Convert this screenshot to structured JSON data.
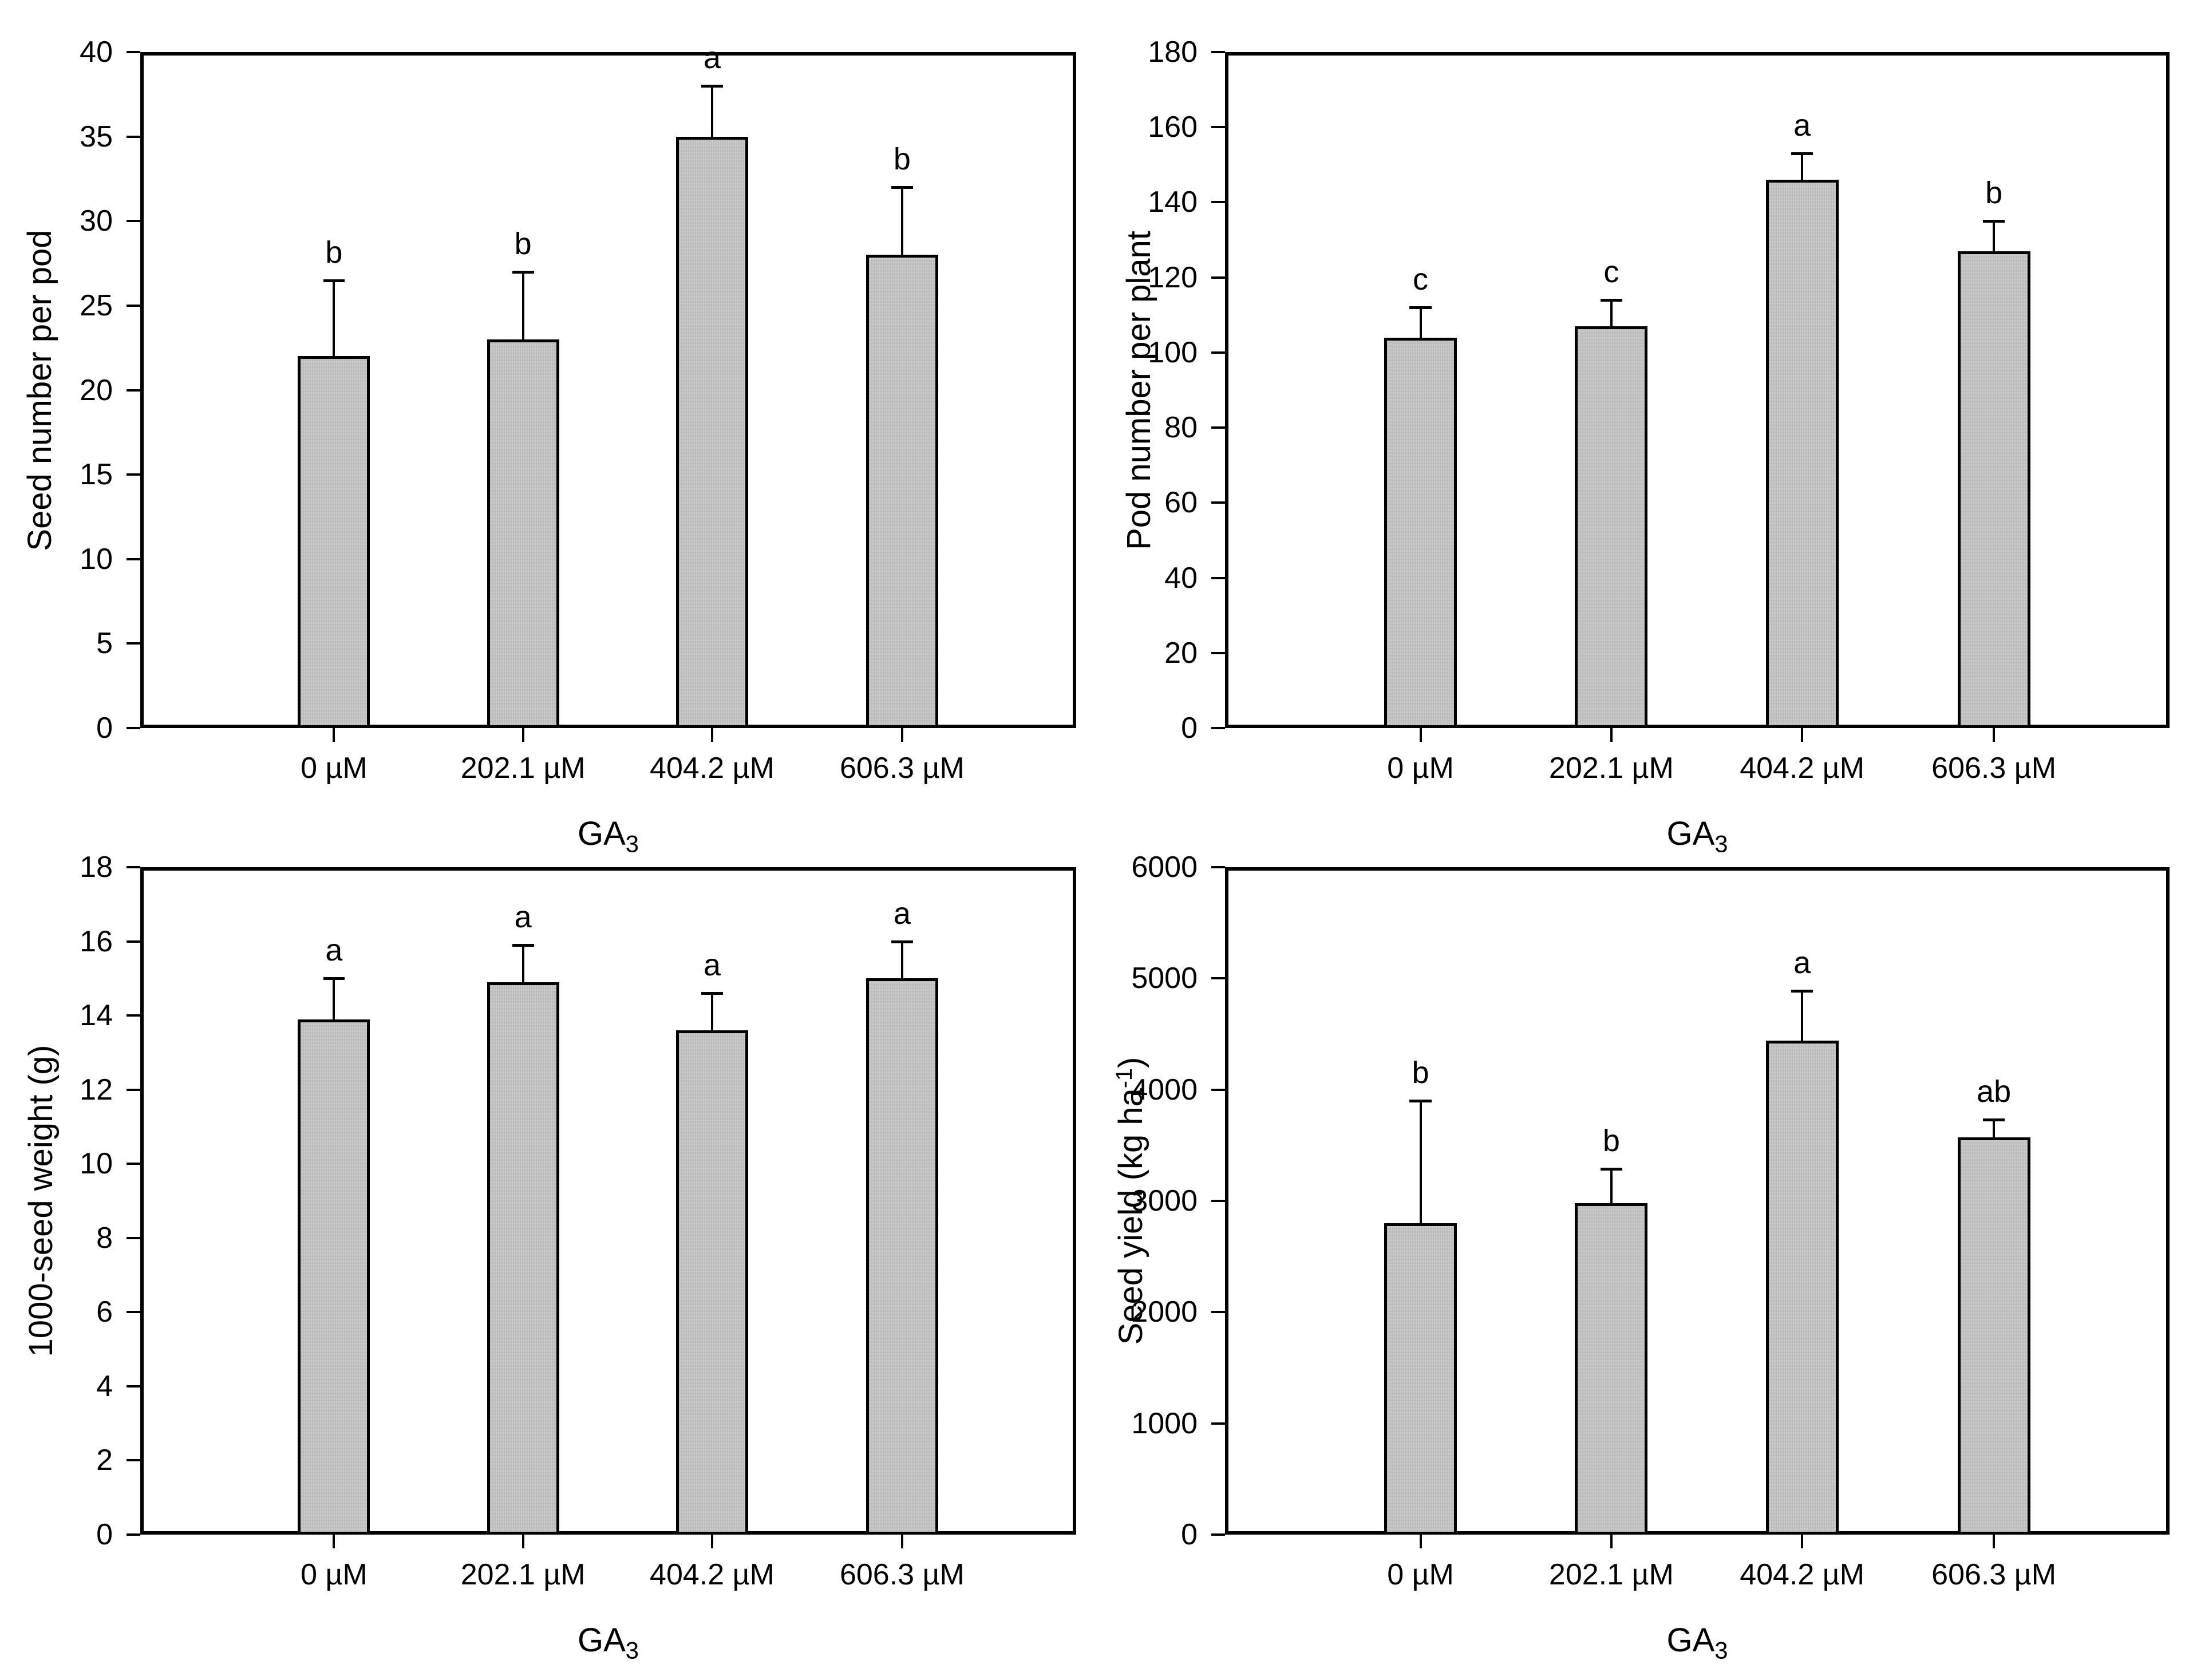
{
  "figure": {
    "background": "#ffffff",
    "line_color": "#000000",
    "bar_fill": "#c9c9c9"
  },
  "chart_data": [
    {
      "id": "seed-number-per-pod",
      "type": "bar",
      "position": "top-left",
      "title": "",
      "ylabel": "Seed number per pod",
      "xlabel_base": "GA",
      "xlabel_sub": "3",
      "categories": [
        "0 µM",
        "202.1 µM",
        "404.2 µM",
        "606.3 µM"
      ],
      "values": [
        22,
        23,
        35,
        28
      ],
      "error_top": [
        26.5,
        27,
        38,
        32
      ],
      "letters": [
        "b",
        "b",
        "a",
        "b"
      ],
      "ylim": [
        0,
        40
      ],
      "ytick_step": 5,
      "yticks": [
        "0",
        "5",
        "10",
        "15",
        "20",
        "25",
        "30",
        "35",
        "40"
      ],
      "grid": false,
      "legend_position": "none"
    },
    {
      "id": "pod-number-per-plant",
      "type": "bar",
      "position": "top-right",
      "title": "",
      "ylabel": "Pod number per plant",
      "xlabel_base": "GA",
      "xlabel_sub": "3",
      "categories": [
        "0 µM",
        "202.1 µM",
        "404.2 µM",
        "606.3 µM"
      ],
      "values": [
        104,
        107,
        146,
        127
      ],
      "error_top": [
        112,
        114,
        153,
        135
      ],
      "letters": [
        "c",
        "c",
        "a",
        "b"
      ],
      "ylim": [
        0,
        180
      ],
      "ytick_step": 20,
      "yticks": [
        "0",
        "20",
        "40",
        "60",
        "80",
        "100",
        "120",
        "140",
        "160",
        "180"
      ],
      "grid": false,
      "legend_position": "none"
    },
    {
      "id": "thousand-seed-weight",
      "type": "bar",
      "position": "bottom-left",
      "title": "",
      "ylabel": "1000-seed weight (g)",
      "xlabel_base": "GA",
      "xlabel_sub": "3",
      "categories": [
        "0 µM",
        "202.1 µM",
        "404.2 µM",
        "606.3 µM"
      ],
      "values": [
        13.9,
        14.9,
        13.6,
        15.0
      ],
      "error_top": [
        15.0,
        15.9,
        14.6,
        16.0
      ],
      "letters": [
        "a",
        "a",
        "a",
        "a"
      ],
      "ylim": [
        0,
        18
      ],
      "ytick_step": 2,
      "yticks": [
        "0",
        "2",
        "4",
        "6",
        "8",
        "10",
        "12",
        "14",
        "16",
        "18"
      ],
      "grid": false,
      "legend_position": "none"
    },
    {
      "id": "seed-yield",
      "type": "bar",
      "position": "bottom-right",
      "title": "",
      "ylabel_pre": "Seed yield (kg ha",
      "ylabel_sup": "-1",
      "ylabel_post": ")",
      "xlabel_base": "GA",
      "xlabel_sub": "3",
      "categories": [
        "0 µM",
        "202.1 µM",
        "404.2 µM",
        "606.3 µM"
      ],
      "values": [
        2800,
        2980,
        4440,
        3570
      ],
      "error_top": [
        3900,
        3290,
        4890,
        3730
      ],
      "letters": [
        "b",
        "b",
        "a",
        "ab"
      ],
      "ylim": [
        0,
        6000
      ],
      "ytick_step": 1000,
      "yticks": [
        "0",
        "1000",
        "2000",
        "3000",
        "4000",
        "5000",
        "6000"
      ],
      "grid": false,
      "legend_position": "none"
    }
  ]
}
